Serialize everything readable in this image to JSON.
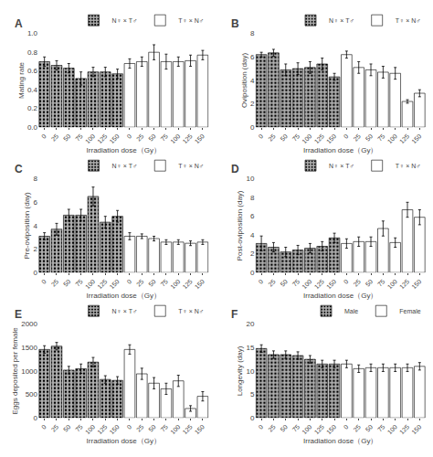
{
  "chart_data": [
    {
      "type": "bar",
      "title": "A",
      "xlabel": "Irradiation dose（Gy）",
      "ylabel": "Mating rate",
      "categories": [
        "0",
        "25",
        "50",
        "75",
        "100",
        "125",
        "150",
        "0",
        "25",
        "50",
        "75",
        "100",
        "125",
        "150"
      ],
      "series": [
        {
          "name": "N♀ × T♂",
          "color": "#b0b0b0",
          "values": [
            0.7,
            0.66,
            0.63,
            0.52,
            0.59,
            0.59,
            0.57,
            null,
            null,
            null,
            null,
            null,
            null,
            null
          ],
          "errors": [
            0.05,
            0.05,
            0.05,
            0.07,
            0.05,
            0.05,
            0.05,
            null,
            null,
            null,
            null,
            null,
            null,
            null
          ]
        },
        {
          "name": "T♀ × N♂",
          "color": "#ffffff",
          "values": [
            null,
            null,
            null,
            null,
            null,
            null,
            null,
            0.68,
            0.7,
            0.8,
            0.7,
            0.7,
            0.71,
            0.77
          ],
          "errors": [
            null,
            null,
            null,
            null,
            null,
            null,
            null,
            0.05,
            0.05,
            0.08,
            0.08,
            0.05,
            0.06,
            0.05
          ]
        }
      ],
      "ylim": [
        0.0,
        1.0
      ],
      "yticks": [
        {
          "value": 0.0,
          "label": "0.0"
        },
        0.2,
        0.4,
        0.6,
        0.8,
        {
          "value": 1.0,
          "label": "1.0"
        }
      ],
      "grid": false,
      "legend": "upper right"
    },
    {
      "type": "bar",
      "title": "B",
      "xlabel": "Irradiation dose（Gy）",
      "ylabel": "Oviposition (day)",
      "categories": [
        "0",
        "25",
        "50",
        "75",
        "100",
        "125",
        "150",
        "0",
        "25",
        "50",
        "75",
        "100",
        "125",
        "150"
      ],
      "series": [
        {
          "name": "N♀ × T♂",
          "color": "#b0b0b0",
          "values": [
            6.2,
            6.35,
            4.9,
            5.0,
            5.1,
            5.4,
            4.3,
            null,
            null,
            null,
            null,
            null,
            null,
            null
          ],
          "errors": [
            0.2,
            0.3,
            0.5,
            0.5,
            0.5,
            0.5,
            0.3,
            null,
            null,
            null,
            null,
            null,
            null,
            null
          ]
        },
        {
          "name": "T♀ × N♂",
          "color": "#ffffff",
          "values": [
            null,
            null,
            null,
            null,
            null,
            null,
            null,
            6.2,
            5.1,
            4.9,
            4.7,
            4.6,
            2.2,
            2.9
          ],
          "errors": [
            null,
            null,
            null,
            null,
            null,
            null,
            null,
            0.3,
            0.5,
            0.5,
            0.5,
            0.5,
            0.15,
            0.3
          ]
        }
      ],
      "ylim": [
        0,
        8
      ],
      "yticks": [
        0,
        2,
        4,
        6,
        8
      ],
      "grid": false,
      "legend": "upper right"
    },
    {
      "type": "bar",
      "title": "C",
      "xlabel": "Irradiation dose（Gy）",
      "ylabel": "Pre-oviposition (day)",
      "categories": [
        "0",
        "25",
        "50",
        "75",
        "100",
        "125",
        "150",
        "0",
        "25",
        "50",
        "75",
        "100",
        "125",
        "150"
      ],
      "series": [
        {
          "name": "N♀ × T♂",
          "color": "#b0b0b0",
          "values": [
            3.1,
            3.7,
            4.9,
            4.9,
            6.5,
            4.3,
            4.8,
            null,
            null,
            null,
            null,
            null,
            null,
            null
          ],
          "errors": [
            0.3,
            0.5,
            0.5,
            0.5,
            0.8,
            0.5,
            0.5,
            null,
            null,
            null,
            null,
            null,
            null,
            null
          ]
        },
        {
          "name": "T♀ × N♂",
          "color": "#ffffff",
          "values": [
            null,
            null,
            null,
            null,
            null,
            null,
            null,
            3.1,
            3.1,
            2.9,
            2.6,
            2.6,
            2.5,
            2.6
          ],
          "errors": [
            null,
            null,
            null,
            null,
            null,
            null,
            null,
            0.3,
            0.2,
            0.2,
            0.2,
            0.2,
            0.2,
            0.2
          ]
        }
      ],
      "ylim": [
        0,
        8
      ],
      "yticks": [
        0,
        2,
        4,
        6,
        8
      ],
      "grid": false,
      "legend": "upper right"
    },
    {
      "type": "bar",
      "title": "D",
      "xlabel": "Irradiation dose（Gy）",
      "ylabel": "Post-oviposition (day)",
      "categories": [
        "0",
        "25",
        "50",
        "75",
        "100",
        "125",
        "150",
        "0",
        "25",
        "50",
        "75",
        "100",
        "125",
        "150"
      ],
      "series": [
        {
          "name": "N♀ × T♂",
          "color": "#b0b0b0",
          "values": [
            3.1,
            2.7,
            2.2,
            2.4,
            2.6,
            2.8,
            3.7,
            null,
            null,
            null,
            null,
            null,
            null,
            null
          ],
          "errors": [
            0.8,
            0.5,
            0.5,
            0.5,
            0.5,
            0.5,
            0.5,
            null,
            null,
            null,
            null,
            null,
            null,
            null
          ]
        },
        {
          "name": "T♀ × N♂",
          "color": "#ffffff",
          "values": [
            null,
            null,
            null,
            null,
            null,
            null,
            null,
            3.1,
            3.3,
            3.3,
            4.7,
            3.2,
            6.7,
            5.9
          ],
          "errors": [
            null,
            null,
            null,
            null,
            null,
            null,
            null,
            0.5,
            0.5,
            0.5,
            0.8,
            0.5,
            0.8,
            0.8
          ]
        }
      ],
      "ylim": [
        0,
        10
      ],
      "yticks": [
        0,
        2,
        4,
        6,
        8,
        10
      ],
      "grid": false,
      "legend": "upper right"
    },
    {
      "type": "bar",
      "title": "E",
      "xlabel": "Irradiation dose（Gy）",
      "ylabel": "Eggs deposited per female",
      "categories": [
        "0",
        "25",
        "50",
        "75",
        "100",
        "125",
        "150",
        "0",
        "25",
        "50",
        "75",
        "100",
        "125",
        "150"
      ],
      "series": [
        {
          "name": "N♀ × T♂",
          "color": "#b0b0b0",
          "values": [
            1460,
            1530,
            1020,
            1050,
            1190,
            820,
            800,
            null,
            null,
            null,
            null,
            null,
            null,
            null
          ],
          "errors": [
            80,
            80,
            80,
            100,
            100,
            80,
            80,
            null,
            null,
            null,
            null,
            null,
            null,
            null
          ]
        },
        {
          "name": "T♀ × N♂",
          "color": "#ffffff",
          "values": [
            null,
            null,
            null,
            null,
            null,
            null,
            null,
            1460,
            940,
            740,
            620,
            790,
            200,
            460
          ],
          "errors": [
            null,
            null,
            null,
            null,
            null,
            null,
            null,
            100,
            120,
            120,
            120,
            120,
            60,
            100
          ]
        }
      ],
      "ylim": [
        0,
        2000
      ],
      "yticks": [
        0,
        500,
        1000,
        1500,
        2000
      ],
      "grid": false,
      "legend": "upper right"
    },
    {
      "type": "bar",
      "title": "F",
      "xlabel": "Irradiation dose（Gy）",
      "ylabel": "Longevity (day)",
      "categories": [
        "0",
        "25",
        "50",
        "75",
        "100",
        "125",
        "150",
        "0",
        "25",
        "50",
        "75",
        "100",
        "125",
        "150"
      ],
      "series": [
        {
          "name": "Male",
          "color": "#b0b0b0",
          "values": [
            14.8,
            13.5,
            13.5,
            13.3,
            12.5,
            11.5,
            11.5,
            null,
            null,
            null,
            null,
            null,
            null,
            null
          ],
          "errors": [
            0.8,
            0.8,
            0.8,
            0.8,
            0.8,
            0.8,
            0.8,
            null,
            null,
            null,
            null,
            null,
            null,
            null
          ]
        },
        {
          "name": "Female",
          "color": "#ffffff",
          "values": [
            null,
            null,
            null,
            null,
            null,
            null,
            null,
            11.5,
            10.5,
            10.7,
            10.7,
            10.7,
            10.7,
            11.0
          ],
          "errors": [
            null,
            null,
            null,
            null,
            null,
            null,
            null,
            0.8,
            0.8,
            0.8,
            0.8,
            0.8,
            0.8,
            0.8
          ]
        }
      ],
      "ylim": [
        0,
        20
      ],
      "yticks": [
        0,
        5,
        10,
        15,
        20
      ],
      "grid": false,
      "legend": "upper right"
    }
  ]
}
